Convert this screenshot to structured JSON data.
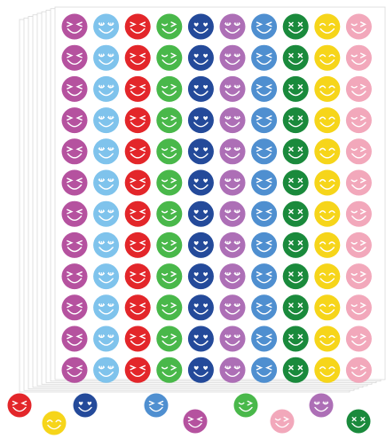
{
  "colors": {
    "background": "#ffffff",
    "sheet": "#ffffff",
    "sheet_edge": "#d9d9d9",
    "face_line": "#ffffff"
  },
  "sticker_sheet": {
    "rows": 12,
    "stacked_sheets": 8,
    "columns": [
      {
        "color": "#b5529f",
        "face": "squint-smile"
      },
      {
        "color": "#7fc3ec",
        "face": "lash-smile"
      },
      {
        "color": "#e3262a",
        "face": "squint-smile"
      },
      {
        "color": "#49b84a",
        "face": "wink-smile"
      },
      {
        "color": "#244a9a",
        "face": "heart-eyes"
      },
      {
        "color": "#ad6fb6",
        "face": "lash-smile"
      },
      {
        "color": "#4f8fd0",
        "face": "squint-smile"
      },
      {
        "color": "#1a8a3c",
        "face": "x-eyes"
      },
      {
        "color": "#f6d51a",
        "face": "happy-smile"
      },
      {
        "color": "#f2a8bb",
        "face": "wink-smile"
      }
    ]
  },
  "loose_stickers": [
    {
      "color": "#e3262a",
      "face": "squint-smile"
    },
    {
      "color": "#f6d51a",
      "face": "happy-smile"
    },
    {
      "color": "#244a9a",
      "face": "heart-eyes"
    },
    {
      "color": "#4f8fd0",
      "face": "squint-smile"
    },
    {
      "color": "#b5529f",
      "face": "squint-smile"
    },
    {
      "color": "#49b84a",
      "face": "wink-smile"
    },
    {
      "color": "#f2a8bb",
      "face": "wink-smile"
    },
    {
      "color": "#ad6fb6",
      "face": "lash-smile"
    },
    {
      "color": "#1a8a3c",
      "face": "x-eyes"
    }
  ]
}
